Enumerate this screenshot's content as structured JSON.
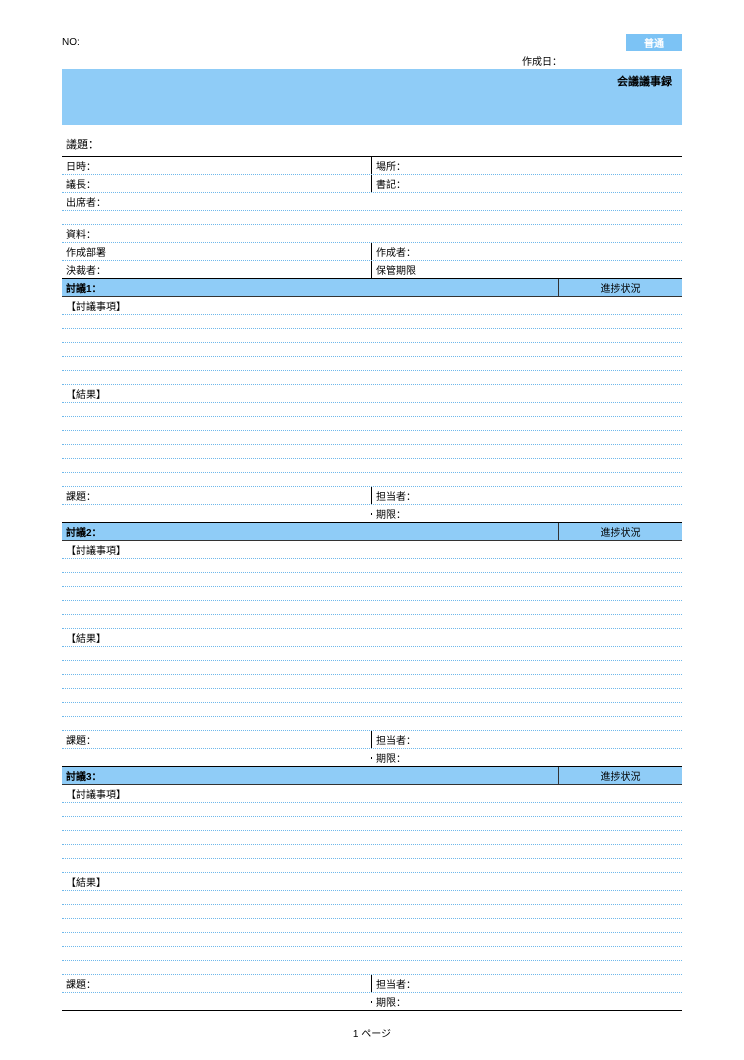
{
  "header": {
    "no_label": "NO:",
    "badge": "普通",
    "date_label": "作成日：",
    "title": "会議議事録"
  },
  "labels": {
    "gidai": "議題：",
    "nichiji": "日時：",
    "basho": "場所：",
    "gicho": "議長：",
    "shoki": "書記：",
    "shusseki": "出席者：",
    "shiryo": "資料：",
    "sakusei_busho": "作成部署",
    "sakuseisha": "作成者：",
    "kessaisha": "決裁者：",
    "hokan": "保管期限",
    "togi_jiko": "【討議事項】",
    "kekka": "【結果】",
    "kadai": "課題：",
    "tantosha": "担当者：",
    "kigen": "期限：",
    "shincho": "進捗状況"
  },
  "discussions": [
    {
      "label": "討議1："
    },
    {
      "label": "討議2："
    },
    {
      "label": "討議3："
    }
  ],
  "footer": "1 ページ",
  "colors": {
    "banner_bg": "#8fccf7",
    "badge_bg": "#7cc3f5",
    "dotted_border": "#6fb8eb"
  }
}
